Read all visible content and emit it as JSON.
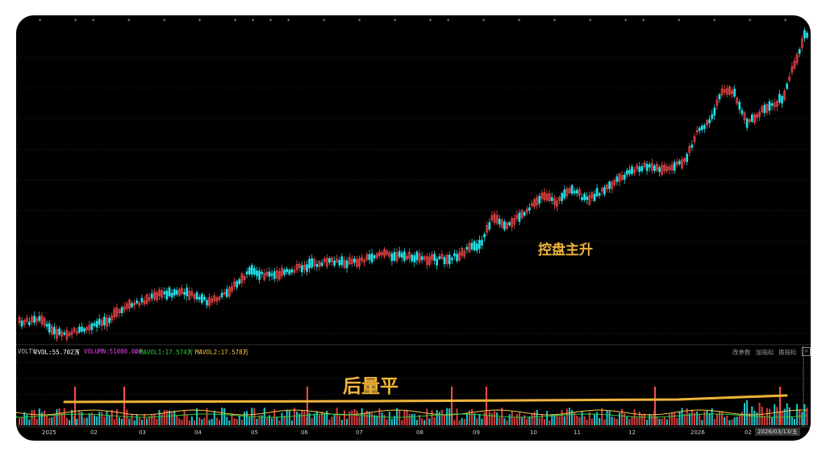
{
  "indicator_bar": {
    "name": "VOLTV",
    "vvol": "VVOL:55.702万",
    "volumn": "VOLUMN:51080.000",
    "mavol1": "MAVOL1:17.574万",
    "mavol2": "MAVOL2:17.578万",
    "arrow": "↓"
  },
  "toolbar": {
    "change_params": "改参数",
    "add_indicator": "加指标",
    "switch_indicator": "换指标",
    "close": "×"
  },
  "annotations": {
    "upper": "控盘主升",
    "lower": "后量平"
  },
  "x_axis": {
    "months": [
      "2025",
      "02",
      "03",
      "04",
      "05",
      "06",
      "07",
      "08",
      "09",
      "10",
      "11",
      "12",
      "2026",
      "02"
    ],
    "cursor_date": "2026/03/13/五"
  },
  "colors": {
    "up": "#ff4b4b",
    "down": "#20e0e8",
    "background": "#000000",
    "annotation": "#f0b43a",
    "ma1": "#f5c542",
    "ma2": "#2ecc40",
    "vvol": "#ffffff",
    "volumn": "#e542e5"
  },
  "chart_data": {
    "type": "candlestick_with_volume",
    "title": "",
    "xlabel": "",
    "ylabel": "",
    "series": [
      {
        "name": "VVOL",
        "values": [
          55.702
        ]
      },
      {
        "name": "VOLUMN",
        "values": [
          51080.0
        ]
      },
      {
        "name": "MAVOL1",
        "values": [
          17.574
        ]
      },
      {
        "name": "MAVOL2",
        "values": [
          17.578
        ]
      }
    ]
  }
}
